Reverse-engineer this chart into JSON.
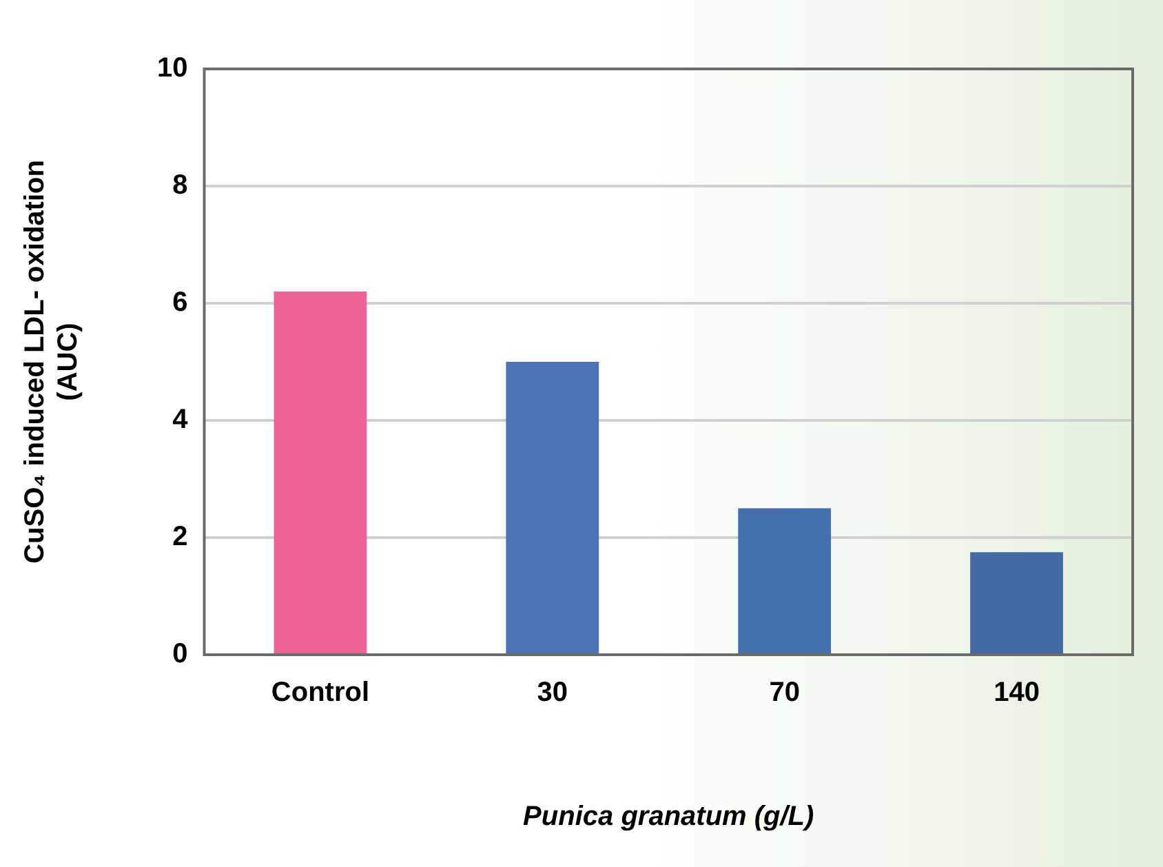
{
  "chart_data": {
    "type": "bar",
    "xlabel": "Punica granatum (g/L)",
    "ylabel": "CuSO₄ induced LDL- oxidation (AUC)",
    "categories": [
      "Control",
      "30",
      "70",
      "140"
    ],
    "values": [
      6.2,
      5.0,
      2.5,
      1.75
    ],
    "colors": [
      "#ec6496",
      "#4a72b5",
      "#456fad",
      "#436aa3"
    ],
    "ylim": [
      0,
      10
    ],
    "yticks": [
      0,
      2,
      4,
      6,
      8,
      10
    ],
    "grid": "y"
  }
}
